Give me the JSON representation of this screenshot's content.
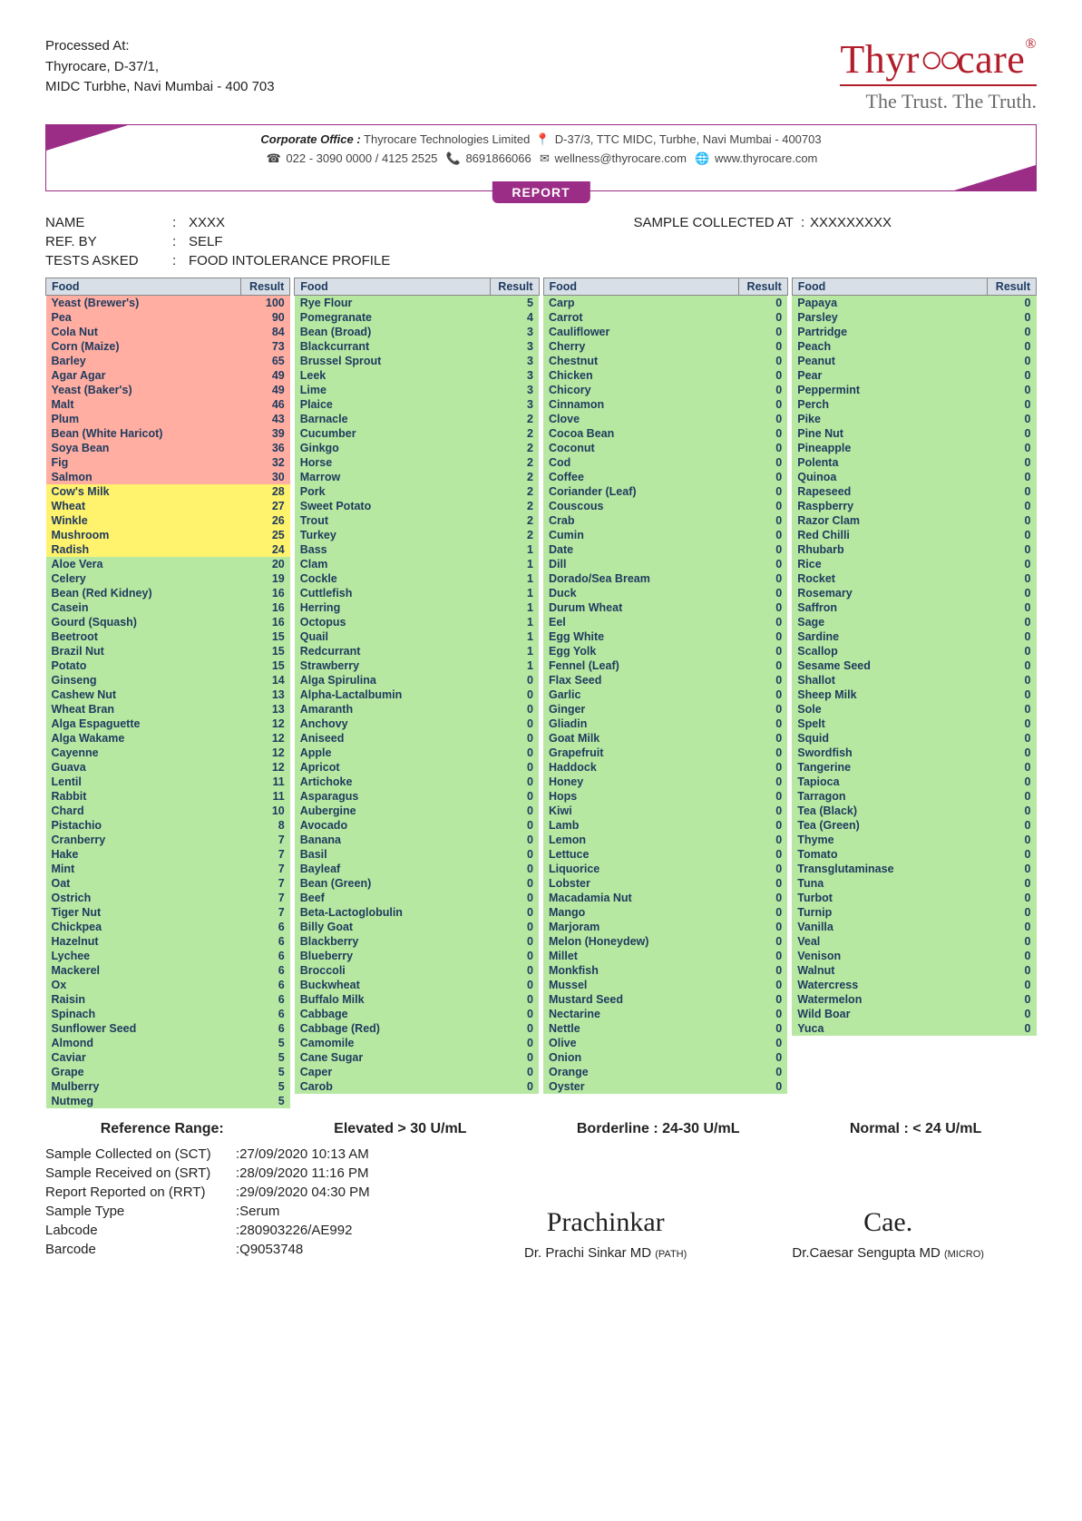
{
  "processed": {
    "heading": "Processed At:",
    "line1": "Thyrocare, D-37/1,",
    "line2": "MIDC Turbhe, Navi Mumbai - 400 703"
  },
  "brand": {
    "name_pre": "Thyr",
    "name_post": "care",
    "tagline": "The Trust. The Truth."
  },
  "banner": {
    "corporate_label": "Corporate Office :",
    "corporate_text": " Thyrocare Technologies Limited",
    "address": " D-37/3, TTC MIDC, Turbhe, Navi Mumbai - 400703",
    "phone": " 022 - 3090 0000 / 4125 2525",
    "mobile": " 8691866066",
    "email": " wellness@thyrocare.com",
    "web": " www.thyrocare.com",
    "report_label": "REPORT"
  },
  "meta": {
    "name_label": "NAME",
    "name_value": "XXXX",
    "sample_label": "SAMPLE COLLECTED AT",
    "sample_value": "XXXXXXXXX",
    "refby_label": "REF. BY",
    "refby_value": "SELF",
    "tests_label": "TESTS ASKED",
    "tests_value": "FOOD INTOLERANCE PROFILE"
  },
  "thresholds": {
    "borderline_lo": 24,
    "elevated_lo": 30
  },
  "table_headers": {
    "food": "Food",
    "result": "Result"
  },
  "columns": [
    [
      {
        "f": "Yeast (Brewer's)",
        "r": 100
      },
      {
        "f": "Pea",
        "r": 90
      },
      {
        "f": "Cola Nut",
        "r": 84
      },
      {
        "f": "Corn (Maize)",
        "r": 73
      },
      {
        "f": "Barley",
        "r": 65
      },
      {
        "f": "Agar Agar",
        "r": 49
      },
      {
        "f": "Yeast (Baker's)",
        "r": 49
      },
      {
        "f": "Malt",
        "r": 46
      },
      {
        "f": "Plum",
        "r": 43
      },
      {
        "f": "Bean (White Haricot)",
        "r": 39
      },
      {
        "f": "Soya Bean",
        "r": 36
      },
      {
        "f": "Fig",
        "r": 32
      },
      {
        "f": "Salmon",
        "r": 30
      },
      {
        "f": "Cow's Milk",
        "r": 28
      },
      {
        "f": "Wheat",
        "r": 27
      },
      {
        "f": "Winkle",
        "r": 26
      },
      {
        "f": "Mushroom",
        "r": 25
      },
      {
        "f": "Radish",
        "r": 24
      },
      {
        "f": "Aloe Vera",
        "r": 20
      },
      {
        "f": "Celery",
        "r": 19
      },
      {
        "f": "Bean (Red Kidney)",
        "r": 16
      },
      {
        "f": "Casein",
        "r": 16
      },
      {
        "f": "Gourd (Squash)",
        "r": 16
      },
      {
        "f": "Beetroot",
        "r": 15
      },
      {
        "f": "Brazil Nut",
        "r": 15
      },
      {
        "f": "Potato",
        "r": 15
      },
      {
        "f": "Ginseng",
        "r": 14
      },
      {
        "f": "Cashew Nut",
        "r": 13
      },
      {
        "f": "Wheat Bran",
        "r": 13
      },
      {
        "f": "Alga Espaguette",
        "r": 12
      },
      {
        "f": "Alga Wakame",
        "r": 12
      },
      {
        "f": "Cayenne",
        "r": 12
      },
      {
        "f": "Guava",
        "r": 12
      },
      {
        "f": "Lentil",
        "r": 11
      },
      {
        "f": "Rabbit",
        "r": 11
      },
      {
        "f": "Chard",
        "r": 10
      },
      {
        "f": "Pistachio",
        "r": 8
      },
      {
        "f": "Cranberry",
        "r": 7
      },
      {
        "f": "Hake",
        "r": 7
      },
      {
        "f": "Mint",
        "r": 7
      },
      {
        "f": "Oat",
        "r": 7
      },
      {
        "f": "Ostrich",
        "r": 7
      },
      {
        "f": "Tiger Nut",
        "r": 7
      },
      {
        "f": "Chickpea",
        "r": 6
      },
      {
        "f": "Hazelnut",
        "r": 6
      },
      {
        "f": "Lychee",
        "r": 6
      },
      {
        "f": "Mackerel",
        "r": 6
      },
      {
        "f": "Ox",
        "r": 6
      },
      {
        "f": "Raisin",
        "r": 6
      },
      {
        "f": "Spinach",
        "r": 6
      },
      {
        "f": "Sunflower Seed",
        "r": 6
      },
      {
        "f": "Almond",
        "r": 5
      },
      {
        "f": "Caviar",
        "r": 5
      },
      {
        "f": "Grape",
        "r": 5
      },
      {
        "f": "Mulberry",
        "r": 5
      },
      {
        "f": "Nutmeg",
        "r": 5
      }
    ],
    [
      {
        "f": "Rye Flour",
        "r": 5
      },
      {
        "f": "Pomegranate",
        "r": 4
      },
      {
        "f": "Bean (Broad)",
        "r": 3
      },
      {
        "f": "Blackcurrant",
        "r": 3
      },
      {
        "f": "Brussel Sprout",
        "r": 3
      },
      {
        "f": "Leek",
        "r": 3
      },
      {
        "f": "Lime",
        "r": 3
      },
      {
        "f": "Plaice",
        "r": 3
      },
      {
        "f": "Barnacle",
        "r": 2
      },
      {
        "f": "Cucumber",
        "r": 2
      },
      {
        "f": "Ginkgo",
        "r": 2
      },
      {
        "f": "Horse",
        "r": 2
      },
      {
        "f": "Marrow",
        "r": 2
      },
      {
        "f": "Pork",
        "r": 2
      },
      {
        "f": "Sweet Potato",
        "r": 2
      },
      {
        "f": "Trout",
        "r": 2
      },
      {
        "f": "Turkey",
        "r": 2
      },
      {
        "f": "Bass",
        "r": 1
      },
      {
        "f": "Clam",
        "r": 1
      },
      {
        "f": "Cockle",
        "r": 1
      },
      {
        "f": "Cuttlefish",
        "r": 1
      },
      {
        "f": "Herring",
        "r": 1
      },
      {
        "f": "Octopus",
        "r": 1
      },
      {
        "f": "Quail",
        "r": 1
      },
      {
        "f": "Redcurrant",
        "r": 1
      },
      {
        "f": "Strawberry",
        "r": 1
      },
      {
        "f": "Alga Spirulina",
        "r": 0
      },
      {
        "f": "Alpha-Lactalbumin",
        "r": 0
      },
      {
        "f": "Amaranth",
        "r": 0
      },
      {
        "f": "Anchovy",
        "r": 0
      },
      {
        "f": "Aniseed",
        "r": 0
      },
      {
        "f": "Apple",
        "r": 0
      },
      {
        "f": "Apricot",
        "r": 0
      },
      {
        "f": "Artichoke",
        "r": 0
      },
      {
        "f": "Asparagus",
        "r": 0
      },
      {
        "f": "Aubergine",
        "r": 0
      },
      {
        "f": "Avocado",
        "r": 0
      },
      {
        "f": "Banana",
        "r": 0
      },
      {
        "f": "Basil",
        "r": 0
      },
      {
        "f": "Bayleaf",
        "r": 0
      },
      {
        "f": "Bean (Green)",
        "r": 0
      },
      {
        "f": "Beef",
        "r": 0
      },
      {
        "f": "Beta-Lactoglobulin",
        "r": 0
      },
      {
        "f": "Billy Goat",
        "r": 0
      },
      {
        "f": "Blackberry",
        "r": 0
      },
      {
        "f": "Blueberry",
        "r": 0
      },
      {
        "f": "Broccoli",
        "r": 0
      },
      {
        "f": "Buckwheat",
        "r": 0
      },
      {
        "f": "Buffalo Milk",
        "r": 0
      },
      {
        "f": "Cabbage",
        "r": 0
      },
      {
        "f": "Cabbage (Red)",
        "r": 0
      },
      {
        "f": "Camomile",
        "r": 0
      },
      {
        "f": "Cane Sugar",
        "r": 0
      },
      {
        "f": "Caper",
        "r": 0
      },
      {
        "f": "Carob",
        "r": 0
      }
    ],
    [
      {
        "f": "Carp",
        "r": 0
      },
      {
        "f": "Carrot",
        "r": 0
      },
      {
        "f": "Cauliflower",
        "r": 0
      },
      {
        "f": "Cherry",
        "r": 0
      },
      {
        "f": "Chestnut",
        "r": 0
      },
      {
        "f": "Chicken",
        "r": 0
      },
      {
        "f": "Chicory",
        "r": 0
      },
      {
        "f": "Cinnamon",
        "r": 0
      },
      {
        "f": "Clove",
        "r": 0
      },
      {
        "f": "Cocoa Bean",
        "r": 0
      },
      {
        "f": "Coconut",
        "r": 0
      },
      {
        "f": "Cod",
        "r": 0
      },
      {
        "f": "Coffee",
        "r": 0
      },
      {
        "f": "Coriander (Leaf)",
        "r": 0
      },
      {
        "f": "Couscous",
        "r": 0
      },
      {
        "f": "Crab",
        "r": 0
      },
      {
        "f": "Cumin",
        "r": 0
      },
      {
        "f": "Date",
        "r": 0
      },
      {
        "f": "Dill",
        "r": 0
      },
      {
        "f": "Dorado/Sea Bream",
        "r": 0
      },
      {
        "f": "Duck",
        "r": 0
      },
      {
        "f": "Durum Wheat",
        "r": 0
      },
      {
        "f": "Eel",
        "r": 0
      },
      {
        "f": "Egg White",
        "r": 0
      },
      {
        "f": "Egg Yolk",
        "r": 0
      },
      {
        "f": "Fennel (Leaf)",
        "r": 0
      },
      {
        "f": "Flax Seed",
        "r": 0
      },
      {
        "f": "Garlic",
        "r": 0
      },
      {
        "f": "Ginger",
        "r": 0
      },
      {
        "f": "Gliadin",
        "r": 0
      },
      {
        "f": "Goat Milk",
        "r": 0
      },
      {
        "f": "Grapefruit",
        "r": 0
      },
      {
        "f": "Haddock",
        "r": 0
      },
      {
        "f": "Honey",
        "r": 0
      },
      {
        "f": "Hops",
        "r": 0
      },
      {
        "f": "Kiwi",
        "r": 0
      },
      {
        "f": "Lamb",
        "r": 0
      },
      {
        "f": "Lemon",
        "r": 0
      },
      {
        "f": "Lettuce",
        "r": 0
      },
      {
        "f": "Liquorice",
        "r": 0
      },
      {
        "f": "Lobster",
        "r": 0
      },
      {
        "f": "Macadamia Nut",
        "r": 0
      },
      {
        "f": "Mango",
        "r": 0
      },
      {
        "f": "Marjoram",
        "r": 0
      },
      {
        "f": "Melon (Honeydew)",
        "r": 0
      },
      {
        "f": "Millet",
        "r": 0
      },
      {
        "f": "Monkfish",
        "r": 0
      },
      {
        "f": "Mussel",
        "r": 0
      },
      {
        "f": "Mustard Seed",
        "r": 0
      },
      {
        "f": "Nectarine",
        "r": 0
      },
      {
        "f": "Nettle",
        "r": 0
      },
      {
        "f": "Olive",
        "r": 0
      },
      {
        "f": "Onion",
        "r": 0
      },
      {
        "f": "Orange",
        "r": 0
      },
      {
        "f": "Oyster",
        "r": 0
      }
    ],
    [
      {
        "f": "Papaya",
        "r": 0
      },
      {
        "f": "Parsley",
        "r": 0
      },
      {
        "f": "Partridge",
        "r": 0
      },
      {
        "f": "Peach",
        "r": 0
      },
      {
        "f": "Peanut",
        "r": 0
      },
      {
        "f": "Pear",
        "r": 0
      },
      {
        "f": "Peppermint",
        "r": 0
      },
      {
        "f": "Perch",
        "r": 0
      },
      {
        "f": "Pike",
        "r": 0
      },
      {
        "f": "Pine Nut",
        "r": 0
      },
      {
        "f": "Pineapple",
        "r": 0
      },
      {
        "f": "Polenta",
        "r": 0
      },
      {
        "f": "Quinoa",
        "r": 0
      },
      {
        "f": "Rapeseed",
        "r": 0
      },
      {
        "f": "Raspberry",
        "r": 0
      },
      {
        "f": "Razor Clam",
        "r": 0
      },
      {
        "f": "Red Chilli",
        "r": 0
      },
      {
        "f": "Rhubarb",
        "r": 0
      },
      {
        "f": "Rice",
        "r": 0
      },
      {
        "f": "Rocket",
        "r": 0
      },
      {
        "f": "Rosemary",
        "r": 0
      },
      {
        "f": "Saffron",
        "r": 0
      },
      {
        "f": "Sage",
        "r": 0
      },
      {
        "f": "Sardine",
        "r": 0
      },
      {
        "f": "Scallop",
        "r": 0
      },
      {
        "f": "Sesame Seed",
        "r": 0
      },
      {
        "f": "Shallot",
        "r": 0
      },
      {
        "f": "Sheep Milk",
        "r": 0
      },
      {
        "f": "Sole",
        "r": 0
      },
      {
        "f": "Spelt",
        "r": 0
      },
      {
        "f": "Squid",
        "r": 0
      },
      {
        "f": "Swordfish",
        "r": 0
      },
      {
        "f": "Tangerine",
        "r": 0
      },
      {
        "f": "Tapioca",
        "r": 0
      },
      {
        "f": "Tarragon",
        "r": 0
      },
      {
        "f": "Tea (Black)",
        "r": 0
      },
      {
        "f": "Tea (Green)",
        "r": 0
      },
      {
        "f": "Thyme",
        "r": 0
      },
      {
        "f": "Tomato",
        "r": 0
      },
      {
        "f": "Transglutaminase",
        "r": 0
      },
      {
        "f": "Tuna",
        "r": 0
      },
      {
        "f": "Turbot",
        "r": 0
      },
      {
        "f": "Turnip",
        "r": 0
      },
      {
        "f": "Vanilla",
        "r": 0
      },
      {
        "f": "Veal",
        "r": 0
      },
      {
        "f": "Venison",
        "r": 0
      },
      {
        "f": "Walnut",
        "r": 0
      },
      {
        "f": "Watercress",
        "r": 0
      },
      {
        "f": "Watermelon",
        "r": 0
      },
      {
        "f": "Wild Boar",
        "r": 0
      },
      {
        "f": "Yuca",
        "r": 0
      }
    ]
  ],
  "ref_range": {
    "label": "Reference Range:",
    "elevated": "Elevated > 30 U/mL",
    "borderline": "Borderline : 24-30 U/mL",
    "normal": "Normal : < 24 U/mL"
  },
  "footer": {
    "sct_label": "Sample Collected on (SCT)",
    "sct_value": "27/09/2020 10:13 AM",
    "srt_label": "Sample Received on (SRT)",
    "srt_value": "28/09/2020 11:16 PM",
    "rrt_label": "Report Reported on (RRT)",
    "rrt_value": "29/09/2020 04:30 PM",
    "type_label": "Sample Type",
    "type_value": "Serum",
    "labcode_label": "Labcode",
    "labcode_value": "280903226/AE992",
    "barcode_label": "Barcode",
    "barcode_value": "Q9053748"
  },
  "signatures": {
    "sig1_name": "Dr. Prachi Sinkar MD ",
    "sig1_spec": "(PATH)",
    "sig2_name": "Dr.Caesar Sengupta MD ",
    "sig2_spec": "(MICRO)"
  }
}
